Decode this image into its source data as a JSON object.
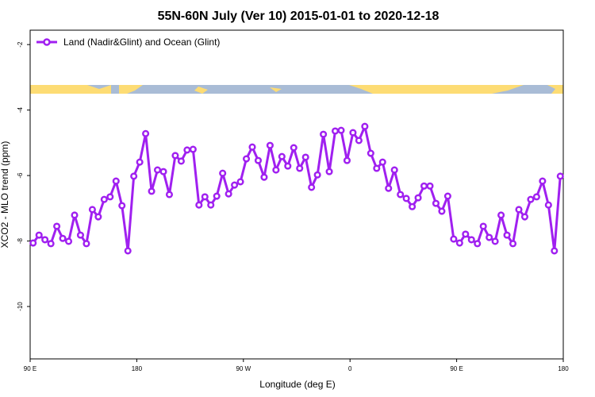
{
  "chart_data": {
    "type": "line",
    "title": "55N-60N July (Ver 10)   2015-01-01 to 2020-12-18",
    "x_label": "Longitude (deg E)",
    "y_label": "XCO2 - MLO trend (ppm)",
    "xlim": [
      90,
      540
    ],
    "ylim": [
      -11.6,
      -1.56
    ],
    "xticks": [
      {
        "value": 90,
        "label": "90 E"
      },
      180,
      {
        "value": 270,
        "label": "90 W"
      },
      {
        "value": 360,
        "label": "0"
      },
      {
        "value": 450,
        "label": "90 E"
      },
      {
        "value": 540,
        "label": "180"
      }
    ],
    "yticks": [
      -2,
      -4,
      -6,
      -8,
      -10
    ],
    "legend": "top-left",
    "x": [
      92.5,
      97.5,
      102.5,
      107.5,
      112.5,
      117.5,
      122.5,
      127.5,
      132.5,
      137.5,
      142.5,
      147.5,
      152.5,
      157.5,
      162.5,
      167.5,
      172.5,
      177.5,
      182.5,
      187.5,
      192.5,
      197.5,
      202.5,
      207.5,
      212.5,
      217.5,
      222.5,
      227.5,
      232.5,
      237.5,
      242.5,
      247.5,
      252.5,
      257.5,
      262.5,
      267.5,
      272.5,
      277.5,
      282.5,
      287.5,
      292.5,
      297.5,
      302.5,
      307.5,
      312.5,
      317.5,
      322.5,
      327.5,
      332.5,
      337.5,
      342.5,
      347.5,
      352.5,
      357.5,
      362.5,
      367.5,
      372.5,
      377.5,
      382.5,
      387.5,
      392.5,
      397.5,
      402.5,
      407.5,
      412.5,
      417.5,
      422.5,
      427.5,
      432.5,
      437.5,
      442.5,
      447.5,
      452.5,
      457.5,
      462.5,
      467.5,
      472.5,
      477.5,
      482.5,
      487.5,
      492.5,
      497.5,
      502.5,
      507.5,
      512.5,
      517.5,
      522.5,
      527.5,
      532.5,
      537.5
    ],
    "series": [
      {
        "name": "Land (Nadir&Glint) and Ocean (Glint)",
        "color": "#a020f0",
        "values": [
          -8.06,
          -7.82,
          -7.96,
          -8.08,
          -7.55,
          -7.92,
          -8.01,
          -7.21,
          -7.82,
          -8.08,
          -7.04,
          -7.26,
          -6.73,
          -6.65,
          -6.17,
          -6.92,
          -8.3,
          -6.02,
          -5.59,
          -4.72,
          -6.48,
          -5.83,
          -5.88,
          -6.58,
          -5.39,
          -5.56,
          -5.22,
          -5.2,
          -6.9,
          -6.65,
          -6.9,
          -6.63,
          -5.93,
          -6.56,
          -6.29,
          -6.19,
          -5.49,
          -5.13,
          -5.54,
          -6.05,
          -5.08,
          -5.83,
          -5.42,
          -5.71,
          -5.15,
          -5.78,
          -5.44,
          -6.36,
          -5.98,
          -4.74,
          -5.88,
          -4.64,
          -4.62,
          -5.54,
          -4.69,
          -4.93,
          -4.5,
          -5.32,
          -5.78,
          -5.59,
          -6.39,
          -5.83,
          -6.58,
          -6.7,
          -6.95,
          -6.68,
          -6.32,
          -6.32,
          -6.85,
          -7.09,
          -6.63,
          -7.94,
          -8.06,
          -7.79,
          -7.96,
          -8.08,
          -7.55,
          -7.89,
          -8.01,
          -7.21,
          -7.82,
          -8.08,
          -7.04,
          -7.26,
          -6.73,
          -6.65,
          -6.17,
          -6.9,
          -8.3,
          -6.02
        ]
      }
    ]
  }
}
